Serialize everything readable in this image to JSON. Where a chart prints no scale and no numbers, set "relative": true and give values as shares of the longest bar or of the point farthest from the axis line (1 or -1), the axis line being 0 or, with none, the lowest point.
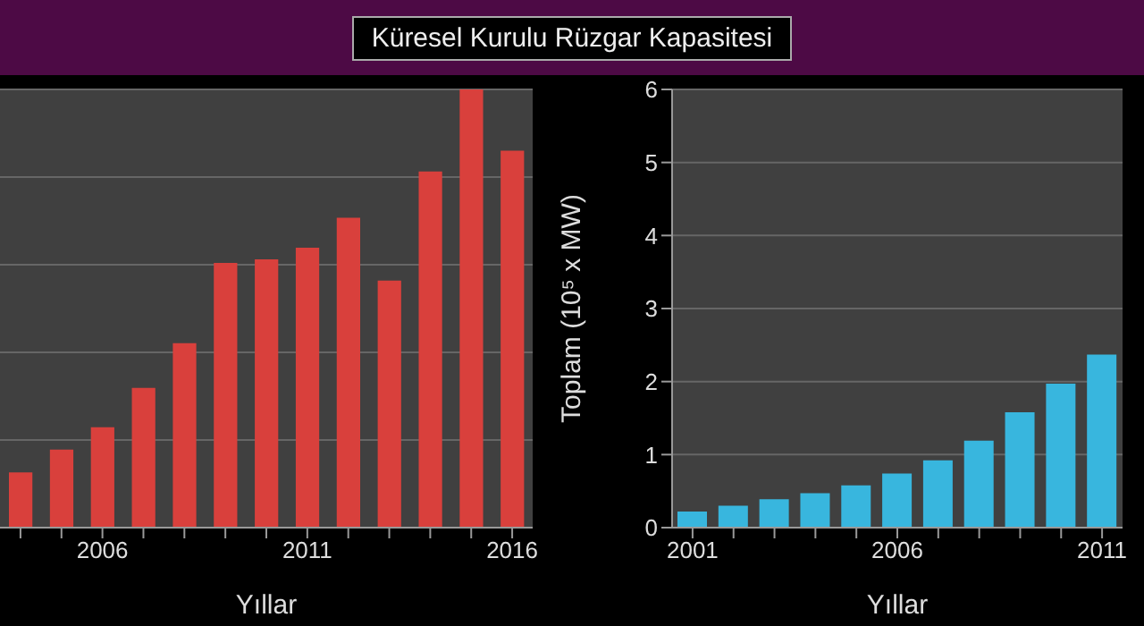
{
  "chart_data": [
    {
      "type": "bar",
      "title": "Küresel Kurulu Rüzgar Kapasitesi",
      "xlabel": "Yıllar",
      "relative": true,
      "grid": "y",
      "categories": [
        null,
        null,
        "2006",
        null,
        null,
        null,
        null,
        "2011",
        null,
        null,
        null,
        null,
        "2016"
      ],
      "series": [
        {
          "color": "#d9403c",
          "values": [
            0.126,
            0.178,
            0.229,
            0.319,
            0.421,
            0.604,
            0.612,
            0.639,
            0.707,
            0.564,
            0.813,
            1,
            0.86
          ]
        }
      ]
    },
    {
      "type": "bar",
      "xlabel": "Yıllar",
      "ylabel": "Toplam (10⁵ x MW)",
      "grid": "y",
      "ylim": [
        0,
        6
      ],
      "yticks": [
        0,
        1,
        2,
        3,
        4,
        5,
        6
      ],
      "categories": [
        "2001",
        null,
        null,
        null,
        null,
        "2006",
        null,
        null,
        null,
        null,
        "2011"
      ],
      "series": [
        {
          "color": "#38b6de",
          "values": [
            0.22,
            0.3,
            0.39,
            0.47,
            0.58,
            0.74,
            0.92,
            1.19,
            1.58,
            1.97,
            2.37
          ]
        }
      ]
    }
  ]
}
